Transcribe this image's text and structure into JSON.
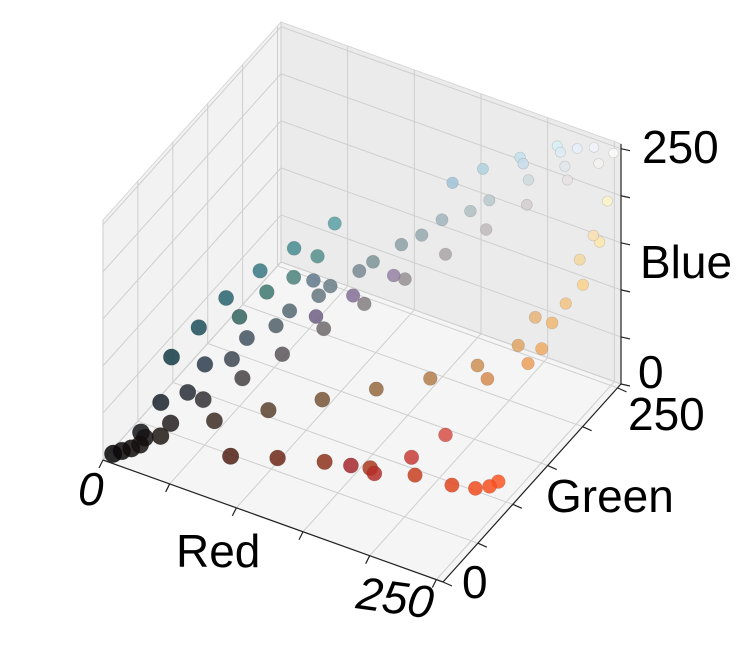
{
  "chart_data": {
    "type": "scatter",
    "projection": "3d",
    "xlabel": "Red",
    "ylabel": "Green",
    "zlabel": "Blue",
    "xlim": [
      0,
      255
    ],
    "ylim": [
      0,
      255
    ],
    "zlim": [
      0,
      255
    ],
    "x_ticks": [
      {
        "value": 0,
        "label": "0"
      },
      {
        "value": 250,
        "label": "250"
      }
    ],
    "y_ticks": [
      {
        "value": 0,
        "label": "0"
      },
      {
        "value": 250,
        "label": "250"
      }
    ],
    "z_ticks": [
      {
        "value": 0,
        "label": "0"
      },
      {
        "value": 250,
        "label": "250"
      }
    ],
    "grid": true,
    "point_color": "each point colored by its own RGB value",
    "series": [
      {
        "values": [
          [
            20,
            15,
            14
          ],
          [
            35,
            30,
            32
          ],
          [
            50,
            48,
            50
          ],
          [
            70,
            66,
            68
          ],
          [
            90,
            85,
            88
          ],
          [
            110,
            106,
            108
          ],
          [
            130,
            126,
            128
          ],
          [
            150,
            146,
            148
          ],
          [
            170,
            166,
            168
          ],
          [
            190,
            186,
            188
          ],
          [
            210,
            206,
            208
          ],
          [
            230,
            226,
            228
          ],
          [
            245,
            242,
            240
          ],
          [
            252,
            250,
            248
          ],
          [
            40,
            45,
            55
          ],
          [
            60,
            70,
            80
          ],
          [
            80,
            95,
            105
          ],
          [
            100,
            118,
            128
          ],
          [
            120,
            138,
            148
          ],
          [
            140,
            160,
            168
          ],
          [
            160,
            180,
            188
          ],
          [
            185,
            200,
            205
          ],
          [
            205,
            218,
            222
          ],
          [
            225,
            232,
            235
          ],
          [
            25,
            35,
            45
          ],
          [
            45,
            60,
            75
          ],
          [
            65,
            82,
            95
          ],
          [
            85,
            105,
            115
          ],
          [
            105,
            125,
            135
          ],
          [
            125,
            148,
            152
          ],
          [
            150,
            170,
            175
          ],
          [
            175,
            192,
            195
          ],
          [
            60,
            45,
            35
          ],
          [
            90,
            65,
            45
          ],
          [
            120,
            85,
            55
          ],
          [
            150,
            105,
            65
          ],
          [
            180,
            125,
            75
          ],
          [
            205,
            145,
            85
          ],
          [
            225,
            165,
            100
          ],
          [
            240,
            185,
            115
          ],
          [
            250,
            210,
            140
          ],
          [
            252,
            230,
            170
          ],
          [
            250,
            245,
            200
          ],
          [
            80,
            30,
            20
          ],
          [
            110,
            40,
            25
          ],
          [
            140,
            50,
            28
          ],
          [
            170,
            58,
            30
          ],
          [
            200,
            65,
            32
          ],
          [
            225,
            70,
            30
          ],
          [
            240,
            75,
            30
          ],
          [
            248,
            80,
            32
          ],
          [
            252,
            85,
            35
          ],
          [
            230,
            180,
            120
          ],
          [
            240,
            170,
            100
          ],
          [
            245,
            195,
            130
          ],
          [
            235,
            160,
            90
          ],
          [
            215,
            140,
            80
          ],
          [
            245,
            215,
            160
          ],
          [
            250,
            225,
            180
          ],
          [
            30,
            80,
            90
          ],
          [
            40,
            100,
            110
          ],
          [
            20,
            60,
            70
          ],
          [
            55,
            120,
            130
          ],
          [
            70,
            140,
            145
          ],
          [
            90,
            160,
            165
          ],
          [
            10,
            8,
            8
          ],
          [
            15,
            12,
            10
          ],
          [
            5,
            5,
            5
          ],
          [
            18,
            20,
            22
          ],
          [
            30,
            25,
            20
          ],
          [
            22,
            18,
            20
          ],
          [
            200,
            60,
            55
          ],
          [
            215,
            80,
            70
          ],
          [
            180,
            45,
            40
          ],
          [
            165,
            40,
            45
          ],
          [
            130,
            110,
            150
          ],
          [
            150,
            130,
            165
          ],
          [
            110,
            95,
            130
          ],
          [
            95,
            120,
            140
          ],
          [
            230,
            240,
            250
          ],
          [
            240,
            245,
            252
          ],
          [
            220,
            235,
            245
          ],
          [
            200,
            220,
            235
          ],
          [
            60,
            120,
            110
          ],
          [
            50,
            100,
            95
          ],
          [
            75,
            130,
            125
          ],
          [
            85,
            145,
            140
          ],
          [
            215,
            240,
            245
          ],
          [
            195,
            225,
            235
          ],
          [
            175,
            210,
            225
          ],
          [
            160,
            195,
            215
          ]
        ]
      }
    ]
  }
}
